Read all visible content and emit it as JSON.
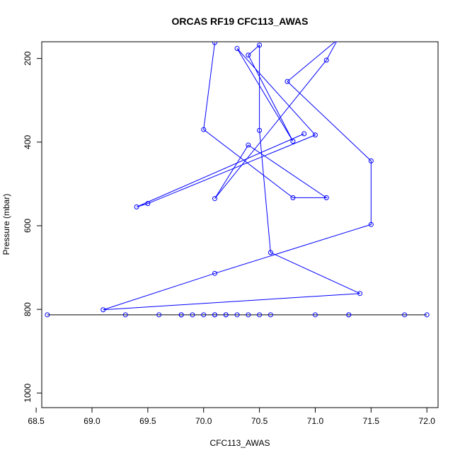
{
  "chart_data": {
    "type": "line",
    "title": "ORCAS RF19 CFC113_AWAS",
    "xlabel": "CFC113_AWAS",
    "ylabel": "Pressure (mbar)",
    "xlim": [
      68.55,
      72.1
    ],
    "ylim": [
      1035,
      160
    ],
    "y_reversed": true,
    "x_ticks": [
      "68.5",
      "69.0",
      "69.5",
      "70.0",
      "70.5",
      "71.0",
      "71.5",
      "72.0"
    ],
    "y_ticks": [
      "200",
      "400",
      "600",
      "800",
      "1000"
    ],
    "grid": false,
    "colors": {
      "series": "#0000ff",
      "line_black": "#000000"
    },
    "series": [
      {
        "points": [
          [
            70.1,
            162
          ],
          [
            70.0,
            370
          ],
          [
            70.8,
            533
          ],
          [
            71.1,
            533
          ],
          [
            70.4,
            407
          ],
          [
            70.1,
            535
          ],
          [
            71.1,
            204
          ],
          [
            71.2,
            155
          ],
          [
            70.75,
            255
          ],
          [
            71.5,
            445
          ],
          [
            71.5,
            597
          ],
          [
            70.1,
            714
          ],
          [
            69.1,
            801
          ],
          [
            71.4,
            762
          ],
          [
            70.6,
            664
          ],
          [
            70.5,
            372
          ],
          [
            70.5,
            168
          ],
          [
            70.4,
            192
          ],
          [
            70.8,
            398
          ],
          [
            70.3,
            176
          ],
          [
            71.0,
            383
          ],
          [
            69.5,
            547
          ],
          [
            69.4,
            555
          ],
          [
            70.9,
            380
          ]
        ]
      },
      {
        "points": [
          [
            68.6,
            813
          ],
          [
            69.3,
            813
          ],
          [
            69.6,
            813
          ],
          [
            69.8,
            813
          ],
          [
            69.8,
            813
          ],
          [
            69.9,
            813
          ],
          [
            70.0,
            813
          ],
          [
            70.1,
            813
          ],
          [
            70.1,
            813
          ],
          [
            70.2,
            813
          ],
          [
            70.2,
            813
          ],
          [
            70.3,
            813
          ],
          [
            70.4,
            813
          ],
          [
            70.5,
            813
          ],
          [
            70.6,
            813
          ],
          [
            71.0,
            813
          ],
          [
            71.3,
            813
          ],
          [
            71.3,
            813
          ],
          [
            71.8,
            813
          ],
          [
            72.0,
            813
          ]
        ]
      }
    ]
  }
}
